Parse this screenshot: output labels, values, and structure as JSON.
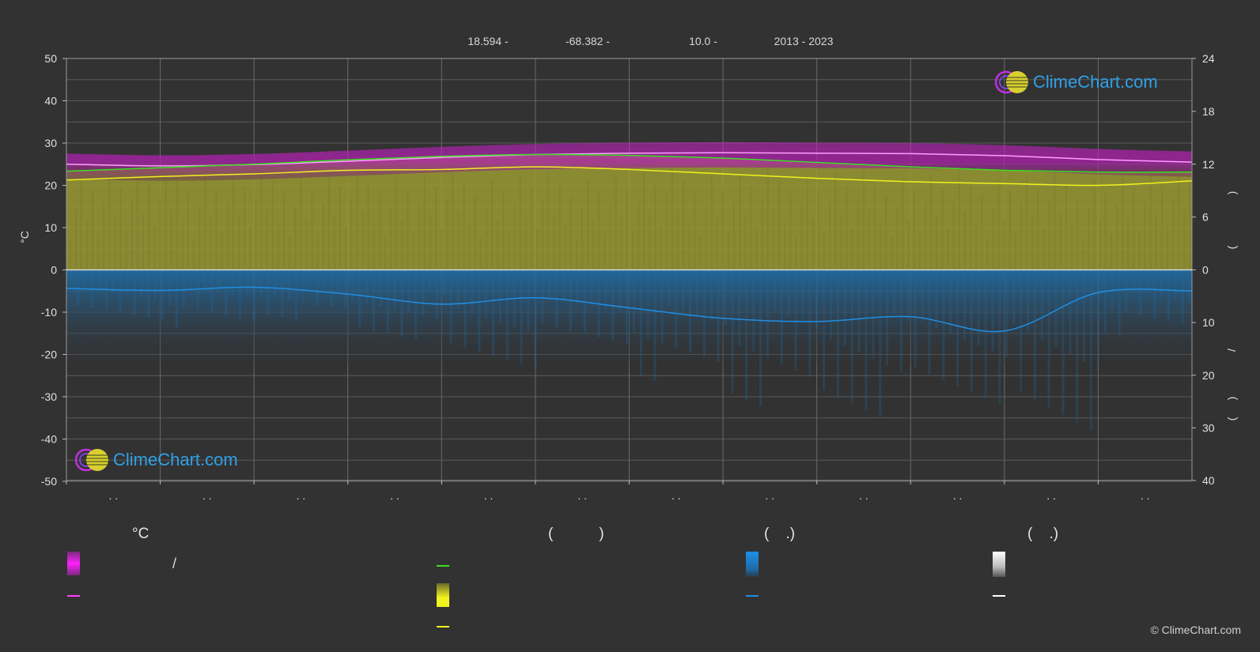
{
  "header": {
    "lat": "18.594 -",
    "lon": "-68.382 -",
    "elev": "10.0 -",
    "period": "2013 - 2023"
  },
  "branding": {
    "logo_text": "ClimeChart.com",
    "copyright": "© ClimeChart.com"
  },
  "chart_data": {
    "type": "area",
    "left_axis": {
      "label": "°C",
      "ylim": [
        -50,
        50
      ],
      "ticks": [
        50,
        40,
        30,
        20,
        10,
        0,
        -10,
        -20,
        -30,
        -40,
        -50
      ]
    },
    "right_axis": {
      "upper_ticks": [
        24,
        18,
        12,
        6,
        0
      ],
      "lower_ticks": [
        10,
        20,
        30,
        40
      ],
      "label_glyphs": [
        ")",
        "(",
        "/",
        ")",
        "("
      ]
    },
    "month_labels": [
      ". .",
      ". .",
      ". .",
      ". .",
      ". .",
      ". .",
      ". .",
      ". .",
      ". .",
      ". .",
      ". .",
      ". ."
    ],
    "x": [
      0,
      1,
      2,
      3,
      4,
      5,
      6,
      7,
      8,
      9,
      10,
      11,
      12
    ],
    "series": [
      {
        "key": "temp_max",
        "values": [
          25.0,
          24.6,
          24.9,
          25.7,
          26.6,
          27.3,
          27.6,
          27.7,
          27.6,
          27.5,
          27.0,
          26.1,
          25.5
        ]
      },
      {
        "key": "daylight",
        "values": [
          11.2,
          11.6,
          12.0,
          12.5,
          12.9,
          13.1,
          13.0,
          12.7,
          12.2,
          11.7,
          11.3,
          11.1,
          11.1
        ]
      },
      {
        "key": "sunshine",
        "values": [
          10.2,
          10.6,
          10.9,
          11.3,
          11.4,
          11.7,
          11.4,
          10.9,
          10.4,
          10.0,
          9.8,
          9.6,
          10.1
        ]
      },
      {
        "key": "rain_mm",
        "values": [
          3.5,
          3.9,
          3.3,
          4.6,
          6.5,
          5.3,
          7.2,
          9.2,
          9.8,
          8.9,
          11.6,
          4.3,
          4.0
        ]
      }
    ],
    "band_max_upper": 29.0,
    "band_max_lower": 24.0,
    "band_sun_top": 23.5,
    "rain_band_bottom": 18.0
  },
  "legend": {
    "col1": {
      "heading": "°C",
      "row1_text": "/",
      "row2_text": ""
    },
    "col2": {
      "heading": "(           )",
      "row1_text": "",
      "row2_text": "",
      "row3_text": ""
    },
    "col3": {
      "heading": "(    .)",
      "row1_text": "",
      "row2_text": ""
    },
    "col4": {
      "heading": "(    .)",
      "row1_text": "",
      "row2_text": ""
    },
    "colors": {
      "magenta": "#ff40ff",
      "green": "#3ce01e",
      "yellow": "#f2f21e",
      "blue": "#1e8fe6",
      "white": "#ffffff"
    }
  }
}
